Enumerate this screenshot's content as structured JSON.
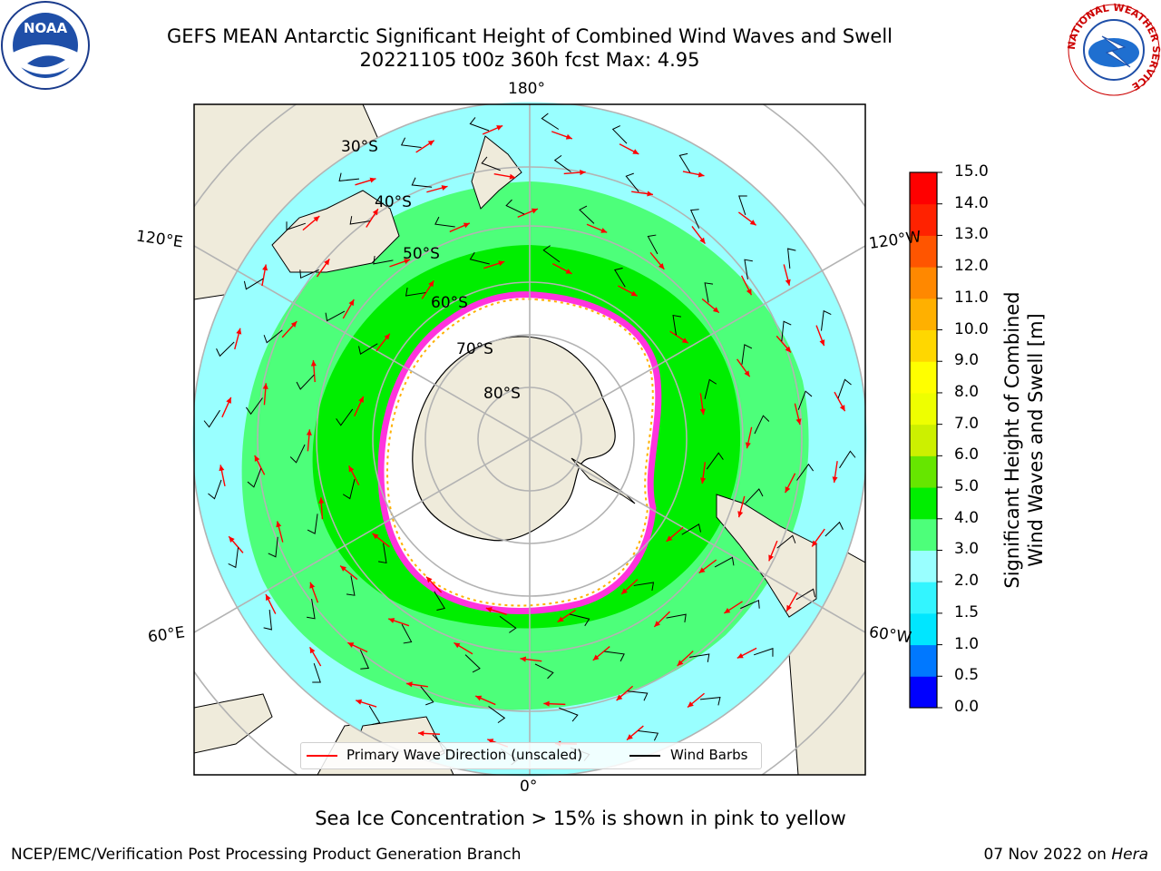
{
  "title_line1": "GEFS MEAN Antarctic Significant Height of Combined Wind Waves and Swell",
  "title_line2": "20221105 t00z 360h fcst   Max: 4.95",
  "longitude_labels": {
    "top": "180°",
    "bottom": "0°",
    "left_upper": "120°E",
    "left_lower": "60°E",
    "right_upper": "120°W",
    "right_lower": "60°W"
  },
  "latitude_labels": [
    "30°S",
    "40°S",
    "50°S",
    "60°S",
    "70°S",
    "80°S"
  ],
  "legend": {
    "wave_label": "Primary Wave Direction (unscaled)",
    "barb_label": "Wind Barbs",
    "wave_color": "#ff0000",
    "barb_color": "#000000"
  },
  "colorbar": {
    "label_line1": "Significant Height of Combined",
    "label_line2": "Wind Waves and Swell [m]",
    "ticks": [
      "0.0",
      "0.5",
      "1.0",
      "1.5",
      "2.0",
      "3.0",
      "4.0",
      "5.0",
      "6.0",
      "7.0",
      "8.0",
      "9.0",
      "10.0",
      "11.0",
      "12.0",
      "13.0",
      "14.0",
      "15.0"
    ],
    "colors": [
      "#0000ff",
      "#0078ff",
      "#00e6ff",
      "#33f5ff",
      "#99ffff",
      "#4dff7a",
      "#00ee00",
      "#66e600",
      "#ccf000",
      "#eeff00",
      "#ffff00",
      "#ffd700",
      "#ffb000",
      "#ff8800",
      "#ff5500",
      "#ff2200",
      "#ff0000"
    ]
  },
  "subtitle": "Sea Ice Concentration > 15% is shown in pink to yellow",
  "footer_left": "NCEP/EMC/Verification Post Processing Product Generation Branch",
  "footer_right_prefix": "07 Nov 2022 on ",
  "footer_right_machine": "Hera",
  "map_colors": {
    "land": "#efebdb",
    "ocean_background": "#99ffff",
    "ocean_mid": "#4dff7a",
    "ocean_high": "#00ee00",
    "ice": "#ff33dd",
    "ice_edge": "#ffb000",
    "inner_ocean": "#ffffff"
  },
  "logos": {
    "noaa": "NOAA",
    "nws_ring": "NATIONAL WEATHER SERVICE"
  }
}
